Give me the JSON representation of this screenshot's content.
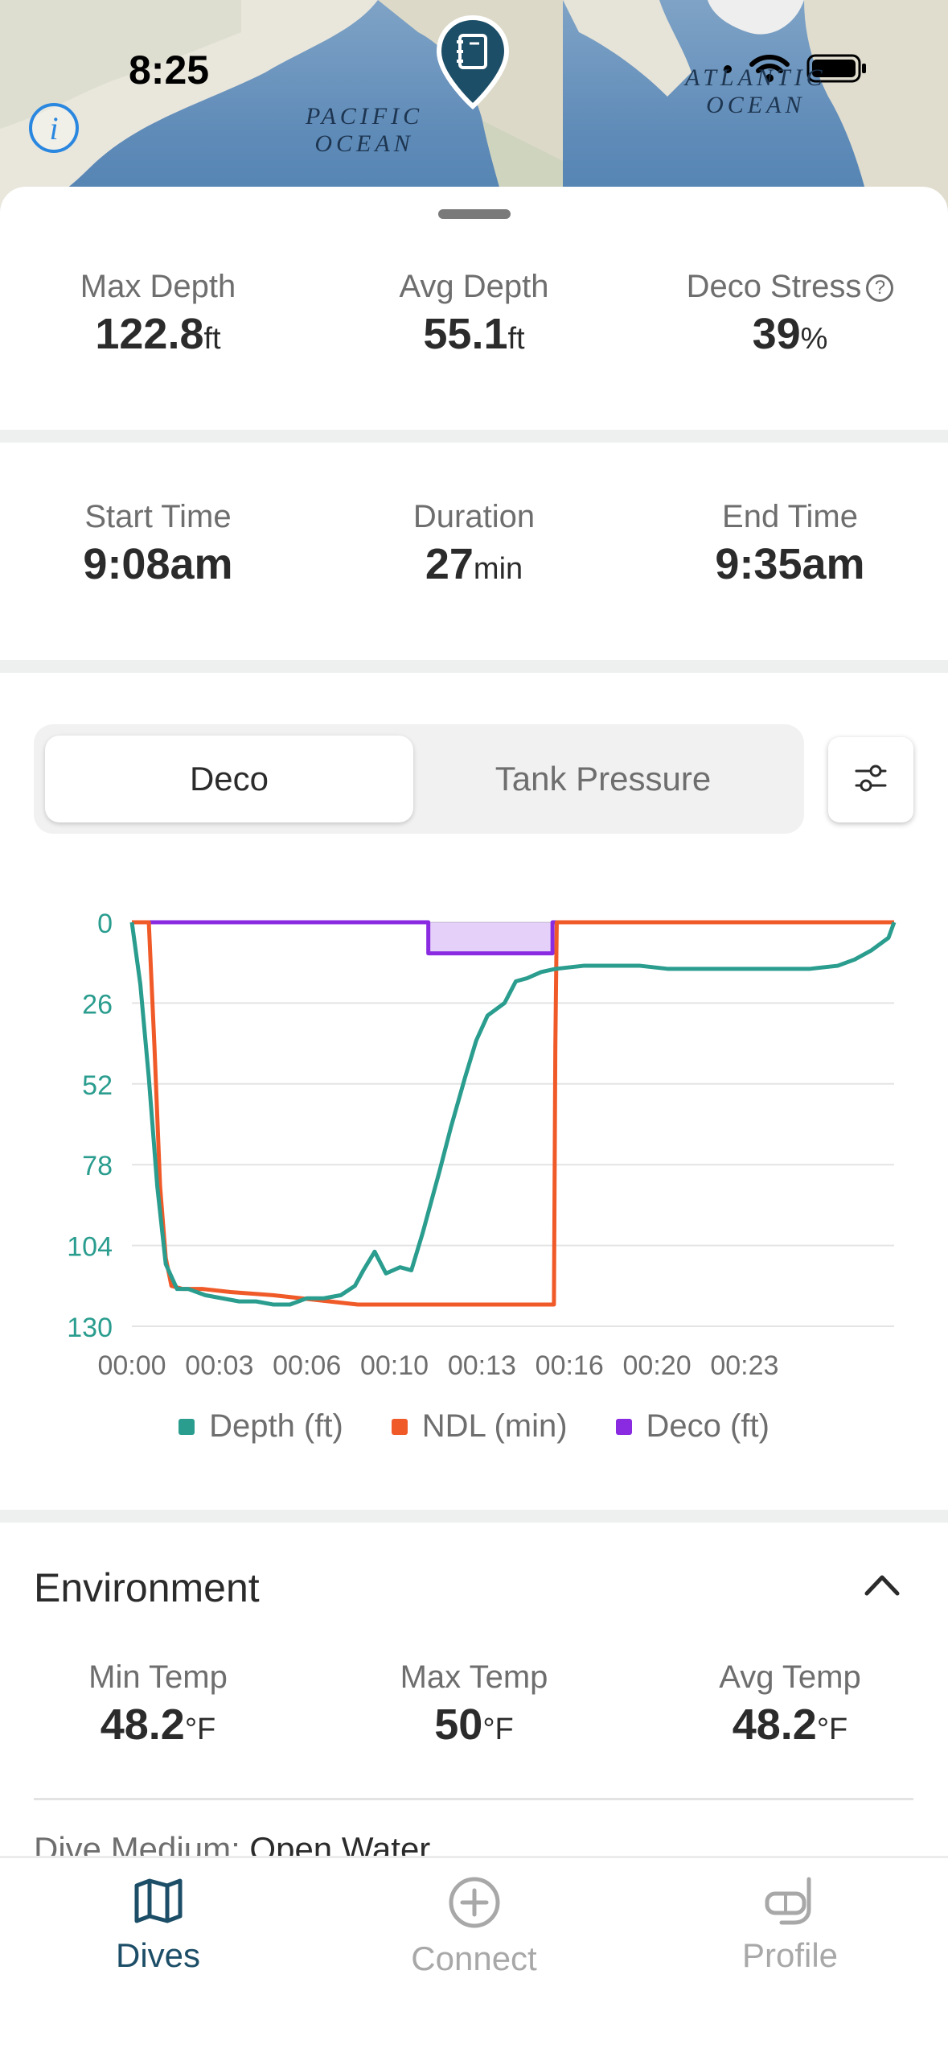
{
  "status_bar": {
    "time": "8:25"
  },
  "map": {
    "labels": [
      {
        "line1": "PACIFIC",
        "line2": "OCEAN"
      },
      {
        "line1": "ATLANTIC",
        "line2": "OCEAN"
      }
    ]
  },
  "summary": [
    {
      "label": "Max Depth",
      "value": "122.8",
      "unit": "ft"
    },
    {
      "label": "Avg Depth",
      "value": "55.1",
      "unit": "ft"
    },
    {
      "label": "Deco Stress",
      "value": "39",
      "unit": "%"
    }
  ],
  "times": [
    {
      "label": "Start Time",
      "value": "9:08am",
      "unit": ""
    },
    {
      "label": "Duration",
      "value": "27",
      "unit": "min"
    },
    {
      "label": "End Time",
      "value": "9:35am",
      "unit": ""
    }
  ],
  "segments": {
    "active": "Deco",
    "inactive": "Tank Pressure"
  },
  "chart_data": {
    "type": "line",
    "x_ticks": [
      "00:00",
      "00:03",
      "00:06",
      "00:10",
      "00:13",
      "00:16",
      "00:20",
      "00:23"
    ],
    "y_ticks": [
      "0",
      "26",
      "52",
      "78",
      "104",
      "130"
    ],
    "ylim": [
      0,
      130
    ],
    "xlim_min": [
      0,
      27
    ],
    "y_inverted": true,
    "colors": {
      "depth": "#2a9d8f",
      "ndl": "#f05a28",
      "deco": "#8a2be2",
      "grid": "#e4e4e4",
      "axis_label": "#2a9d8f",
      "x_label": "#6e6e6e"
    },
    "series": [
      {
        "name": "Depth (ft)",
        "x": [
          0,
          0.3,
          0.6,
          0.9,
          1.2,
          1.6,
          2.0,
          2.6,
          3.2,
          3.8,
          4.4,
          5.0,
          5.6,
          6.2,
          6.8,
          7.4,
          7.9,
          8.2,
          8.6,
          9.0,
          9.5,
          9.9,
          10.3,
          10.6,
          10.9,
          11.3,
          11.8,
          12.2,
          12.6,
          13.2,
          13.6,
          14.0,
          14.5,
          15.0,
          16.0,
          17.0,
          18.0,
          19.0,
          20.0,
          21.0,
          22.0,
          23.0,
          24.0,
          25.0,
          25.6,
          26.2,
          26.8,
          27.0
        ],
        "values": [
          0,
          20,
          50,
          85,
          110,
          118,
          118,
          120,
          121,
          122,
          122,
          123,
          123,
          121,
          121,
          120,
          117,
          112,
          106,
          113,
          111,
          112,
          100,
          90,
          80,
          66,
          50,
          38,
          30,
          26,
          19,
          18,
          16,
          15,
          14,
          14,
          14,
          15,
          15,
          15,
          15,
          15,
          15,
          14,
          12,
          9,
          5,
          0
        ]
      },
      {
        "name": "NDL (min)",
        "x": [
          0,
          0.6,
          0.8,
          1.0,
          1.2,
          1.4,
          1.8,
          2.5,
          3.5,
          5.0,
          7.0,
          8.0,
          10.0,
          12.0,
          14.0,
          14.95,
          15.0,
          15.05,
          20.0,
          27.0
        ],
        "values": [
          0,
          0,
          40,
          85,
          108,
          117,
          118,
          118,
          119,
          120,
          122,
          123,
          123,
          123,
          123,
          123,
          40,
          0,
          0,
          0
        ]
      },
      {
        "name": "Deco (ft)",
        "x": [
          0,
          10.5,
          10.5,
          14.9,
          14.9,
          27.0
        ],
        "values": [
          0,
          0,
          10,
          10,
          0,
          0
        ]
      }
    ],
    "legend": [
      "Depth (ft)",
      "NDL (min)",
      "Deco (ft)"
    ]
  },
  "environment": {
    "title": "Environment",
    "temps": [
      {
        "label": "Min Temp",
        "value": "48.2",
        "unit": "°F"
      },
      {
        "label": "Max Temp",
        "value": "50",
        "unit": "°F"
      },
      {
        "label": "Avg Temp",
        "value": "48.2",
        "unit": "°F"
      }
    ],
    "dive_medium_label": "Dive Medium:",
    "dive_medium_value": "Open Water"
  },
  "tabs": [
    {
      "label": "Dives",
      "icon": "map-icon",
      "active": true
    },
    {
      "label": "Connect",
      "icon": "plus-circle-icon",
      "active": false
    },
    {
      "label": "Profile",
      "icon": "snorkel-icon",
      "active": false
    }
  ],
  "colors": {
    "accent": "#1d4e67",
    "tab_inactive": "#a8a8a8",
    "info": "#2a87e0"
  }
}
